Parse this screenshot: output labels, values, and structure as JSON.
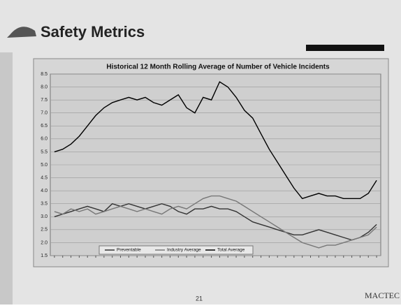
{
  "slide": {
    "title": "Safety Metrics",
    "logo": "MACTEC",
    "page": "21"
  },
  "chart_data": {
    "type": "line",
    "title": "Historical 12 Month Rolling Average of Number of Vehicle Incidents",
    "categories": [
      null,
      null,
      null,
      null,
      null,
      null,
      null,
      null,
      null,
      null,
      null,
      null,
      null,
      null,
      null,
      null,
      null,
      null,
      null,
      null,
      null,
      null,
      null,
      null,
      null,
      null,
      null,
      null,
      null,
      null,
      null,
      null,
      null,
      null,
      null,
      null,
      null,
      null,
      null,
      null
    ],
    "series": [
      {
        "name": "Preventable",
        "color": "#333333",
        "values": [
          3.0,
          3.1,
          3.2,
          3.3,
          3.4,
          3.3,
          3.2,
          3.5,
          3.4,
          3.5,
          3.4,
          3.3,
          3.4,
          3.5,
          3.4,
          3.2,
          3.1,
          3.3,
          3.3,
          3.4,
          3.3,
          3.3,
          3.2,
          3.0,
          2.8,
          2.7,
          2.6,
          2.5,
          2.4,
          2.3,
          2.3,
          2.4,
          2.5,
          2.4,
          2.3,
          2.2,
          2.1,
          2.2,
          2.4,
          2.7
        ]
      },
      {
        "name": "Industry Average",
        "color": "#777777",
        "values": [
          3.2,
          3.1,
          3.3,
          3.2,
          3.3,
          3.1,
          3.2,
          3.3,
          3.4,
          3.3,
          3.2,
          3.3,
          3.2,
          3.1,
          3.3,
          3.4,
          3.3,
          3.5,
          3.7,
          3.8,
          3.8,
          3.7,
          3.6,
          3.4,
          3.2,
          3.0,
          2.8,
          2.6,
          2.4,
          2.2,
          2.0,
          1.9,
          1.8,
          1.9,
          1.9,
          2.0,
          2.1,
          2.2,
          2.3,
          2.6
        ]
      },
      {
        "name": "Total Average",
        "color": "#000000",
        "values": [
          5.5,
          5.6,
          5.8,
          6.1,
          6.5,
          6.9,
          7.2,
          7.4,
          7.5,
          7.6,
          7.5,
          7.6,
          7.4,
          7.3,
          7.5,
          7.7,
          7.2,
          7.0,
          7.6,
          7.5,
          8.2,
          8.0,
          7.6,
          7.1,
          6.8,
          6.2,
          5.6,
          5.1,
          4.6,
          4.1,
          3.7,
          3.8,
          3.9,
          3.8,
          3.8,
          3.7,
          3.7,
          3.7,
          3.9,
          4.4
        ]
      }
    ],
    "ylim": [
      1.5,
      8.5
    ],
    "yticks": [
      1.5,
      {
        "value": 2,
        "label": "2.0"
      },
      2.5,
      {
        "value": 3,
        "label": "3.0"
      },
      3.5,
      {
        "value": 4,
        "label": "4.0"
      },
      4.5,
      {
        "value": 5,
        "label": "5.0"
      },
      5.5,
      {
        "value": 6,
        "label": "6.0"
      },
      6.5,
      {
        "value": 7,
        "label": "7.0"
      },
      7.5,
      {
        "value": 8,
        "label": "8.0"
      },
      8.5
    ],
    "grid": true
  }
}
